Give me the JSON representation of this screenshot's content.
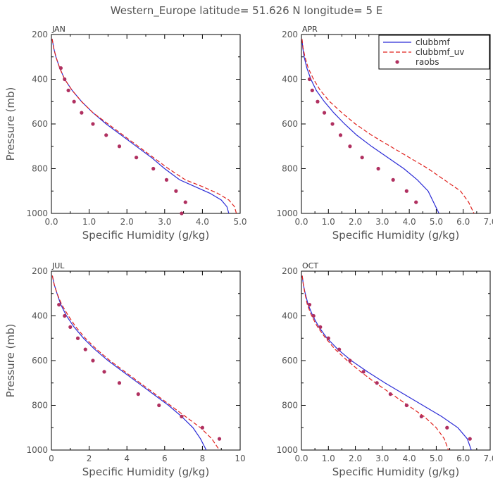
{
  "figure_title": "Western_Europe  latitude= 51.626 N longitude= 5 E",
  "colors": {
    "clubbmf": "#2b2bd6",
    "clubbmf_uv": "#e0201b",
    "raobs": "#b03060",
    "axis_text": "#555555"
  },
  "chart_data": [
    {
      "type": "line",
      "panel": "JAN",
      "xlabel": "Specific Humidity (g/kg)",
      "ylabel": "Pressure (mb)",
      "xlim": [
        0,
        5
      ],
      "ylim": [
        200,
        1000
      ],
      "y_inverted": true,
      "xticks": [
        0,
        1,
        2,
        3,
        4,
        5
      ],
      "xtick_labels": [
        "0.0",
        "1.0",
        "2.0",
        "3.0",
        "4.0",
        "5.0"
      ],
      "yticks": [
        200,
        400,
        600,
        800,
        1000
      ],
      "ytick_labels": [
        "200",
        "400",
        "600",
        "800",
        "1000"
      ],
      "legend": null,
      "series": [
        {
          "name": "clubbmf",
          "style": "solid",
          "x": [
            0.02,
            0.06,
            0.12,
            0.22,
            0.35,
            0.55,
            0.8,
            1.1,
            1.45,
            1.85,
            2.25,
            2.65,
            3.0,
            3.4,
            3.8,
            4.2,
            4.5,
            4.65,
            4.7
          ],
          "y": [
            220,
            260,
            300,
            350,
            400,
            450,
            500,
            550,
            600,
            650,
            700,
            750,
            800,
            850,
            880,
            910,
            940,
            970,
            1000
          ]
        },
        {
          "name": "clubbmf_uv",
          "style": "dashed",
          "x": [
            0.02,
            0.06,
            0.12,
            0.22,
            0.35,
            0.55,
            0.8,
            1.1,
            1.5,
            1.9,
            2.3,
            2.7,
            3.1,
            3.55,
            4.0,
            4.4,
            4.7,
            4.85,
            4.9
          ],
          "y": [
            220,
            260,
            300,
            350,
            400,
            450,
            500,
            550,
            600,
            650,
            700,
            750,
            800,
            850,
            880,
            910,
            940,
            970,
            1000
          ]
        }
      ],
      "points": {
        "name": "raobs",
        "x": [
          0.25,
          0.35,
          0.45,
          0.6,
          0.8,
          1.1,
          1.45,
          1.8,
          2.25,
          2.7,
          3.05,
          3.3,
          3.55,
          3.45
        ],
        "y": [
          350,
          400,
          450,
          500,
          550,
          600,
          650,
          700,
          750,
          800,
          850,
          900,
          950,
          1000
        ]
      }
    },
    {
      "type": "line",
      "panel": "APR",
      "xlabel": "Specific Humidity (g/kg)",
      "ylabel": "",
      "xlim": [
        0,
        7
      ],
      "ylim": [
        200,
        1000
      ],
      "y_inverted": true,
      "xticks": [
        0,
        1,
        2,
        3,
        4,
        5,
        6,
        7
      ],
      "xtick_labels": [
        "0.0",
        "1.0",
        "2.0",
        "3.0",
        "4.0",
        "5.0",
        "6.0",
        "7.0"
      ],
      "yticks": [
        200,
        400,
        600,
        800,
        1000
      ],
      "ytick_labels": [
        "200",
        "400",
        "600",
        "800",
        "1000"
      ],
      "legend": {
        "placement": "top-right",
        "entries": [
          "clubbmf",
          "clubbmf_uv",
          "raobs"
        ]
      },
      "series": [
        {
          "name": "clubbmf",
          "style": "solid",
          "x": [
            0.02,
            0.05,
            0.1,
            0.2,
            0.35,
            0.55,
            0.85,
            1.2,
            1.6,
            2.05,
            2.6,
            3.2,
            3.8,
            4.3,
            4.7,
            4.9,
            5.1
          ],
          "y": [
            220,
            260,
            300,
            350,
            400,
            450,
            500,
            550,
            600,
            650,
            700,
            750,
            800,
            850,
            900,
            950,
            1000
          ]
        },
        {
          "name": "clubbmf_uv",
          "style": "dashed",
          "x": [
            0.02,
            0.06,
            0.13,
            0.25,
            0.45,
            0.7,
            1.05,
            1.5,
            2.0,
            2.6,
            3.3,
            4.0,
            4.7,
            5.3,
            5.9,
            6.2,
            6.4
          ],
          "y": [
            220,
            260,
            300,
            350,
            400,
            450,
            500,
            550,
            600,
            650,
            700,
            750,
            800,
            850,
            900,
            950,
            1000
          ]
        }
      ],
      "points": {
        "name": "raobs",
        "x": [
          0.3,
          0.4,
          0.6,
          0.85,
          1.15,
          1.45,
          1.8,
          2.25,
          2.85,
          3.4,
          3.9,
          4.25
        ],
        "y": [
          400,
          450,
          500,
          550,
          600,
          650,
          700,
          750,
          800,
          850,
          900,
          950
        ]
      }
    },
    {
      "type": "line",
      "panel": "JUL",
      "xlabel": "Specific Humidity (g/kg)",
      "ylabel": "Pressure (mb)",
      "xlim": [
        0,
        10
      ],
      "ylim": [
        200,
        1000
      ],
      "y_inverted": true,
      "xticks": [
        0,
        2,
        4,
        6,
        8,
        10
      ],
      "xtick_labels": [
        "0",
        "2",
        "4",
        "6",
        "8",
        "10"
      ],
      "yticks": [
        200,
        400,
        600,
        800,
        1000
      ],
      "ytick_labels": [
        "200",
        "400",
        "600",
        "800",
        "1000"
      ],
      "legend": null,
      "series": [
        {
          "name": "clubbmf",
          "style": "solid",
          "x": [
            0.05,
            0.15,
            0.3,
            0.5,
            0.8,
            1.2,
            1.7,
            2.3,
            3.0,
            3.8,
            4.6,
            5.4,
            6.2,
            6.9,
            7.5,
            7.9,
            8.2
          ],
          "y": [
            220,
            260,
            300,
            350,
            400,
            450,
            500,
            550,
            600,
            650,
            700,
            750,
            800,
            850,
            900,
            950,
            1000
          ]
        },
        {
          "name": "clubbmf_uv",
          "style": "dashed",
          "x": [
            0.05,
            0.15,
            0.3,
            0.55,
            0.9,
            1.3,
            1.8,
            2.4,
            3.1,
            3.9,
            4.7,
            5.5,
            6.3,
            7.1,
            7.9,
            8.5,
            8.9
          ],
          "y": [
            220,
            260,
            300,
            350,
            400,
            450,
            500,
            550,
            600,
            650,
            700,
            750,
            800,
            850,
            900,
            950,
            1000
          ]
        }
      ],
      "points": {
        "name": "raobs",
        "x": [
          0.4,
          0.7,
          1.0,
          1.4,
          1.8,
          2.2,
          2.8,
          3.6,
          4.6,
          5.7,
          6.9,
          8.0,
          8.9
        ],
        "y": [
          350,
          400,
          450,
          500,
          550,
          600,
          650,
          700,
          750,
          800,
          850,
          900,
          950
        ]
      }
    },
    {
      "type": "line",
      "panel": "OCT",
      "xlabel": "Specific Humidity (g/kg)",
      "ylabel": "",
      "xlim": [
        0,
        7
      ],
      "ylim": [
        200,
        1000
      ],
      "y_inverted": true,
      "xticks": [
        0,
        1,
        2,
        3,
        4,
        5,
        6,
        7
      ],
      "xtick_labels": [
        "0.0",
        "1.0",
        "2.0",
        "3.0",
        "4.0",
        "5.0",
        "6.0",
        "7.0"
      ],
      "yticks": [
        200,
        400,
        600,
        800,
        1000
      ],
      "ytick_labels": [
        "200",
        "400",
        "600",
        "800",
        "1000"
      ],
      "legend": null,
      "series": [
        {
          "name": "clubbmf",
          "style": "solid",
          "x": [
            0.03,
            0.07,
            0.14,
            0.25,
            0.42,
            0.65,
            0.95,
            1.35,
            1.85,
            2.45,
            3.1,
            3.8,
            4.5,
            5.2,
            5.8,
            6.15,
            6.3
          ],
          "y": [
            220,
            260,
            300,
            350,
            400,
            450,
            500,
            550,
            600,
            650,
            700,
            750,
            800,
            850,
            900,
            950,
            1000
          ]
        },
        {
          "name": "clubbmf_uv",
          "style": "dashed",
          "x": [
            0.03,
            0.07,
            0.13,
            0.22,
            0.38,
            0.6,
            0.9,
            1.25,
            1.7,
            2.2,
            2.75,
            3.35,
            3.95,
            4.55,
            5.0,
            5.3,
            5.45
          ],
          "y": [
            220,
            260,
            300,
            350,
            400,
            450,
            500,
            550,
            600,
            650,
            700,
            750,
            800,
            850,
            900,
            950,
            1000
          ]
        }
      ],
      "points": {
        "name": "raobs",
        "x": [
          0.3,
          0.45,
          0.7,
          1.0,
          1.4,
          1.8,
          2.3,
          2.8,
          3.3,
          3.9,
          4.45,
          5.4,
          6.25
        ],
        "y": [
          350,
          400,
          450,
          500,
          550,
          600,
          650,
          700,
          750,
          800,
          850,
          900,
          950
        ]
      }
    }
  ]
}
